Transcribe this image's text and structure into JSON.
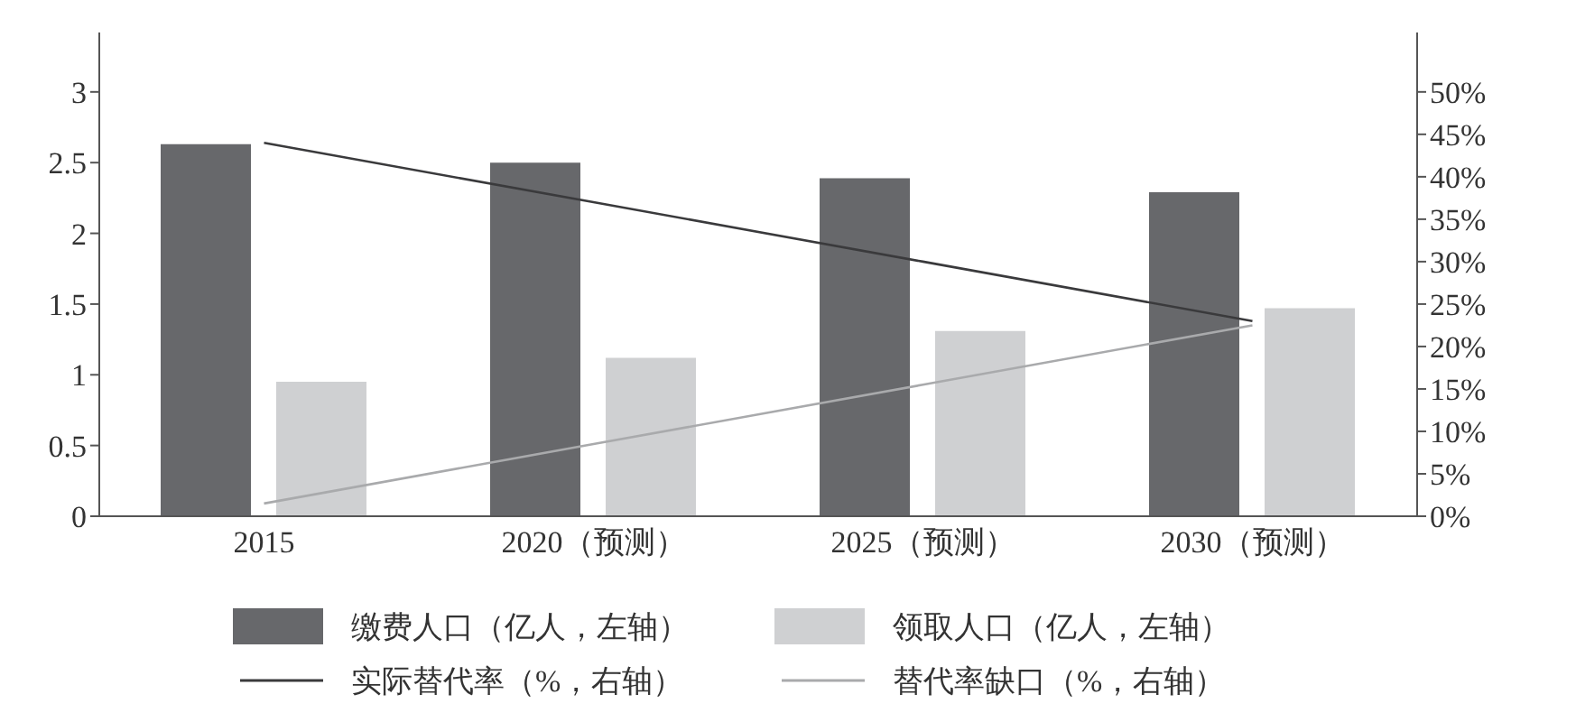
{
  "chart_data": {
    "type": "bar",
    "categories": [
      "2015",
      "2020（预测）",
      "2025（预测）",
      "2030（预测）"
    ],
    "series": [
      {
        "name": "缴费人口（亿人，左轴）",
        "color": "#67686b",
        "values": [
          2.63,
          2.5,
          2.39,
          2.29
        ]
      },
      {
        "name": "领取人口（亿人，左轴）",
        "color": "#cfd0d2",
        "values": [
          0.95,
          1.12,
          1.31,
          1.47
        ]
      },
      {
        "name": "实际替代率（%，右轴）",
        "type": "line",
        "axis": "y2",
        "color": "#3a3a3c",
        "values": [
          44,
          37,
          30,
          23
        ]
      },
      {
        "name": "替代率缺口（%，右轴）",
        "type": "line",
        "axis": "y2",
        "color": "#a9aaac",
        "values": [
          1.5,
          8.5,
          15.5,
          22.5
        ]
      }
    ],
    "ylim": [
      0,
      3.42
    ],
    "yticks": [
      0,
      0.5,
      1,
      1.5,
      2,
      2.5,
      3
    ],
    "y2lim": [
      0,
      57
    ],
    "y2ticks": [
      {
        "value": 0,
        "label": "0%"
      },
      {
        "value": 5,
        "label": "5%"
      },
      {
        "value": 10,
        "label": "10%"
      },
      {
        "value": 15,
        "label": "15%"
      },
      {
        "value": 20,
        "label": "20%"
      },
      {
        "value": 25,
        "label": "25%"
      },
      {
        "value": 30,
        "label": "30%"
      },
      {
        "value": 35,
        "label": "35%"
      },
      {
        "value": 40,
        "label": "40%"
      },
      {
        "value": 45,
        "label": "45%"
      },
      {
        "value": 50,
        "label": "50%"
      }
    ],
    "legend": "bottom",
    "grid": false,
    "marker": "none",
    "line_style": "solid"
  }
}
